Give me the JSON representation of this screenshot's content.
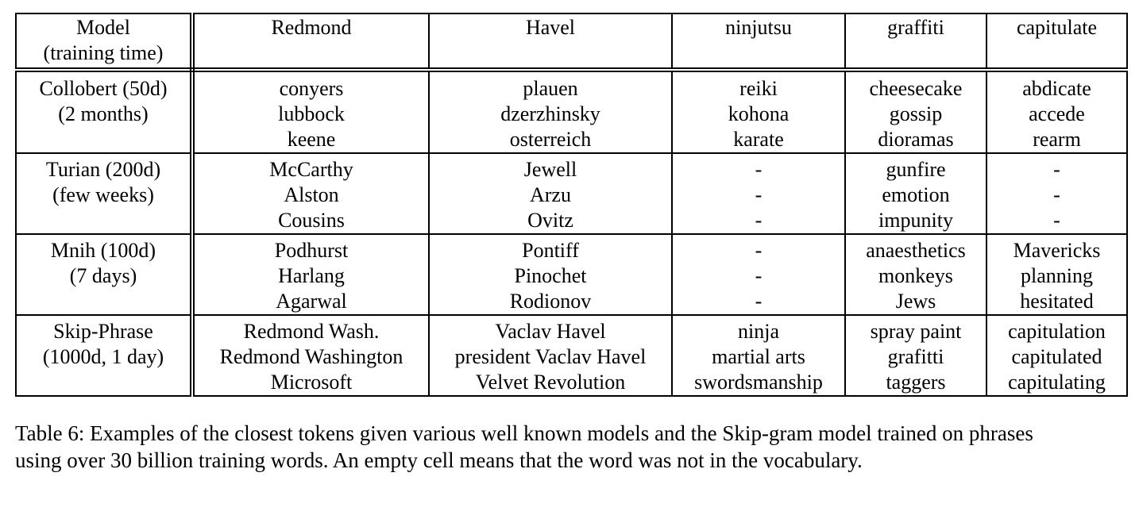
{
  "table": {
    "headers": [
      [
        "Model",
        "(training time)"
      ],
      [
        "Redmond"
      ],
      [
        "Havel"
      ],
      [
        "ninjutsu"
      ],
      [
        "graffiti"
      ],
      [
        "capitulate"
      ]
    ],
    "rows": [
      {
        "model": [
          "Collobert (50d)",
          "(2 months)"
        ],
        "cells": [
          [
            "conyers",
            "lubbock",
            "keene"
          ],
          [
            "plauen",
            "dzerzhinsky",
            "osterreich"
          ],
          [
            "reiki",
            "kohona",
            "karate"
          ],
          [
            "cheesecake",
            "gossip",
            "dioramas"
          ],
          [
            "abdicate",
            "accede",
            "rearm"
          ]
        ]
      },
      {
        "model": [
          "Turian (200d)",
          "(few weeks)"
        ],
        "cells": [
          [
            "McCarthy",
            "Alston",
            "Cousins"
          ],
          [
            "Jewell",
            "Arzu",
            "Ovitz"
          ],
          [
            "-",
            "-",
            "-"
          ],
          [
            "gunfire",
            "emotion",
            "impunity"
          ],
          [
            "-",
            "-",
            "-"
          ]
        ]
      },
      {
        "model": [
          "Mnih (100d)",
          "(7 days)"
        ],
        "cells": [
          [
            "Podhurst",
            "Harlang",
            "Agarwal"
          ],
          [
            "Pontiff",
            "Pinochet",
            "Rodionov"
          ],
          [
            "-",
            "-",
            "-"
          ],
          [
            "anaesthetics",
            "monkeys",
            "Jews"
          ],
          [
            "Mavericks",
            "planning",
            "hesitated"
          ]
        ]
      },
      {
        "model": [
          "Skip-Phrase",
          "(1000d, 1 day)"
        ],
        "cells": [
          [
            "Redmond Wash.",
            "Redmond Washington",
            "Microsoft"
          ],
          [
            "Vaclav Havel",
            "president Vaclav Havel",
            "Velvet Revolution"
          ],
          [
            "ninja",
            "martial arts",
            "swordsmanship"
          ],
          [
            "spray paint",
            "grafitti",
            "taggers"
          ],
          [
            "capitulation",
            "capitulated",
            "capitulating"
          ]
        ]
      }
    ]
  },
  "caption": "Table 6: Examples of the closest tokens given various well known models and the Skip-gram model trained on phrases using over 30 billion training words. An empty cell means that the word was not in the vocabulary."
}
